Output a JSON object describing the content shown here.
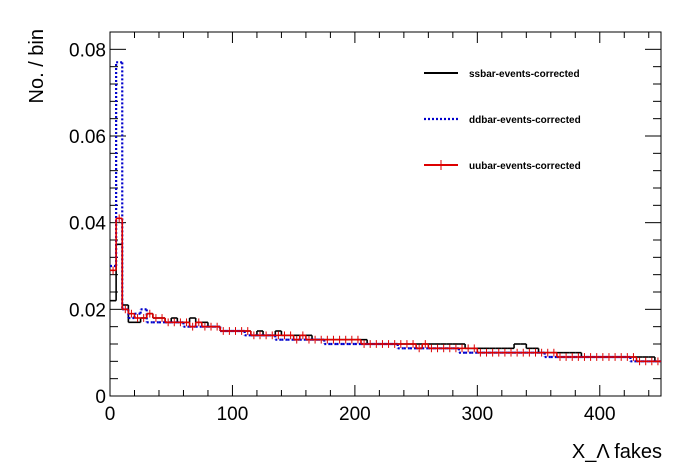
{
  "chart_data": {
    "type": "line",
    "title": "",
    "xlabel": "X_Λ fakes",
    "ylabel": "No. / bin",
    "xlim": [
      0,
      450
    ],
    "ylim": [
      0,
      0.084
    ],
    "x_ticks": [
      0,
      100,
      200,
      300,
      400
    ],
    "y_ticks": [
      0,
      0.02,
      0.04,
      0.06,
      0.08
    ],
    "x_tick_labels": [
      "0",
      "100",
      "200",
      "300",
      "400"
    ],
    "y_tick_labels": [
      "0",
      "0.02",
      "0.04",
      "0.06",
      "0.08"
    ],
    "grid": false,
    "legend_position": "top-right",
    "bin_width": 5,
    "series": [
      {
        "name": "ssbar-events-corrected",
        "color": "#000000",
        "style": "solid-step",
        "values": [
          0.022,
          0.035,
          0.021,
          0.017,
          0.017,
          0.018,
          0.019,
          0.018,
          0.018,
          0.017,
          0.018,
          0.017,
          0.017,
          0.018,
          0.017,
          0.017,
          0.016,
          0.016,
          0.015,
          0.015,
          0.015,
          0.015,
          0.015,
          0.014,
          0.015,
          0.014,
          0.014,
          0.015,
          0.014,
          0.014,
          0.014,
          0.014,
          0.014,
          0.013,
          0.013,
          0.013,
          0.013,
          0.013,
          0.013,
          0.013,
          0.013,
          0.013,
          0.012,
          0.012,
          0.012,
          0.012,
          0.012,
          0.012,
          0.012,
          0.012,
          0.012,
          0.012,
          0.012,
          0.012,
          0.012,
          0.012,
          0.012,
          0.012,
          0.011,
          0.011,
          0.011,
          0.011,
          0.011,
          0.011,
          0.011,
          0.011,
          0.012,
          0.012,
          0.011,
          0.011,
          0.01,
          0.01,
          0.01,
          0.01,
          0.01,
          0.01,
          0.01,
          0.009,
          0.009,
          0.009,
          0.009,
          0.009,
          0.009,
          0.009,
          0.009,
          0.009,
          0.009,
          0.009,
          0.009,
          0.008
        ]
      },
      {
        "name": "ddbar-events-corrected",
        "color": "#0000cc",
        "style": "dotted-step",
        "values": [
          0.03,
          0.077,
          0.02,
          0.018,
          0.019,
          0.02,
          0.017,
          0.017,
          0.017,
          0.017,
          0.017,
          0.017,
          0.016,
          0.016,
          0.016,
          0.016,
          0.016,
          0.016,
          0.015,
          0.015,
          0.015,
          0.015,
          0.014,
          0.014,
          0.014,
          0.014,
          0.014,
          0.013,
          0.013,
          0.013,
          0.013,
          0.013,
          0.013,
          0.013,
          0.013,
          0.012,
          0.012,
          0.012,
          0.012,
          0.012,
          0.012,
          0.012,
          0.012,
          0.012,
          0.012,
          0.012,
          0.012,
          0.011,
          0.011,
          0.011,
          0.011,
          0.011,
          0.011,
          0.011,
          0.011,
          0.011,
          0.011,
          0.01,
          0.01,
          0.01,
          0.01,
          0.01,
          0.01,
          0.01,
          0.01,
          0.01,
          0.01,
          0.01,
          0.01,
          0.01,
          0.01,
          0.009,
          0.009,
          0.009,
          0.009,
          0.009,
          0.009,
          0.009,
          0.009,
          0.009,
          0.009,
          0.009,
          0.009,
          0.009,
          0.009,
          0.008,
          0.008,
          0.008,
          0.008,
          0.008
        ]
      },
      {
        "name": "uubar-events-corrected",
        "color": "#dd0000",
        "style": "solid-step-errorbars",
        "values": [
          0.029,
          0.041,
          0.02,
          0.019,
          0.018,
          0.018,
          0.019,
          0.018,
          0.018,
          0.017,
          0.017,
          0.017,
          0.017,
          0.016,
          0.017,
          0.016,
          0.016,
          0.016,
          0.015,
          0.015,
          0.015,
          0.015,
          0.015,
          0.014,
          0.014,
          0.014,
          0.014,
          0.014,
          0.014,
          0.014,
          0.013,
          0.014,
          0.013,
          0.013,
          0.013,
          0.013,
          0.013,
          0.013,
          0.013,
          0.013,
          0.013,
          0.012,
          0.012,
          0.012,
          0.012,
          0.012,
          0.012,
          0.012,
          0.012,
          0.012,
          0.011,
          0.012,
          0.011,
          0.011,
          0.011,
          0.011,
          0.011,
          0.011,
          0.011,
          0.011,
          0.01,
          0.01,
          0.01,
          0.01,
          0.01,
          0.01,
          0.01,
          0.01,
          0.01,
          0.01,
          0.01,
          0.01,
          0.01,
          0.009,
          0.009,
          0.009,
          0.009,
          0.009,
          0.009,
          0.009,
          0.009,
          0.009,
          0.009,
          0.009,
          0.009,
          0.009,
          0.008,
          0.008,
          0.008,
          0.008
        ]
      }
    ]
  }
}
